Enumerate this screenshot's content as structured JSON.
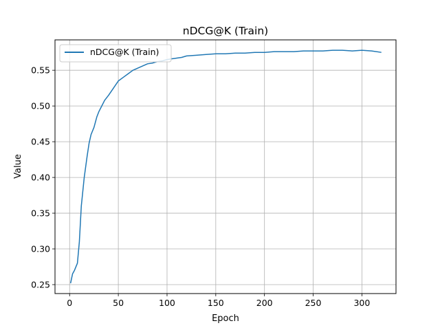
{
  "chart_data": {
    "type": "line",
    "title": "nDCG@K (Train)",
    "xlabel": "Epoch",
    "ylabel": "Value",
    "xlim": [
      -15,
      335
    ],
    "ylim": [
      0.2375,
      0.5925
    ],
    "x_ticks": [
      0,
      50,
      100,
      150,
      200,
      250,
      300
    ],
    "y_ticks": [
      0.25,
      0.3,
      0.35,
      0.4,
      0.45,
      0.5,
      0.55
    ],
    "x_tick_labels": [
      "0",
      "50",
      "100",
      "150",
      "200",
      "250",
      "300"
    ],
    "y_tick_labels": [
      "0.25",
      "0.30",
      "0.35",
      "0.40",
      "0.45",
      "0.50",
      "0.55"
    ],
    "grid": true,
    "legend_position": "upper-left",
    "series": [
      {
        "name": "nDCG@K (Train)",
        "color": "#1f77b4",
        "x": [
          1,
          3,
          5,
          8,
          10,
          12,
          15,
          18,
          20,
          22,
          25,
          28,
          30,
          33,
          36,
          40,
          45,
          50,
          55,
          60,
          65,
          70,
          75,
          80,
          85,
          90,
          95,
          100,
          105,
          110,
          115,
          120,
          130,
          140,
          150,
          160,
          170,
          180,
          190,
          200,
          210,
          220,
          230,
          240,
          250,
          260,
          270,
          280,
          290,
          300,
          310,
          320
        ],
        "values": [
          0.252,
          0.265,
          0.27,
          0.28,
          0.31,
          0.36,
          0.4,
          0.43,
          0.448,
          0.46,
          0.47,
          0.485,
          0.492,
          0.5,
          0.508,
          0.515,
          0.525,
          0.535,
          0.54,
          0.545,
          0.55,
          0.553,
          0.556,
          0.559,
          0.56,
          0.562,
          0.563,
          0.565,
          0.566,
          0.567,
          0.568,
          0.57,
          0.571,
          0.572,
          0.573,
          0.573,
          0.574,
          0.574,
          0.575,
          0.575,
          0.576,
          0.576,
          0.576,
          0.577,
          0.577,
          0.577,
          0.578,
          0.578,
          0.577,
          0.578,
          0.577,
          0.575
        ]
      }
    ]
  }
}
